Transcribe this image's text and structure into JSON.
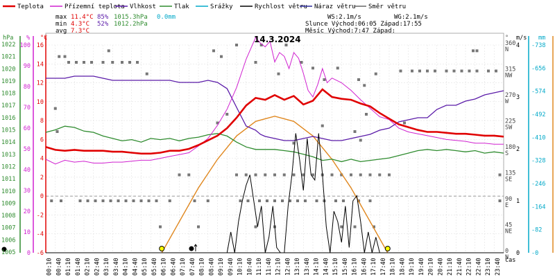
{
  "chart_data": {
    "type": "line",
    "title": "14.3.2024",
    "legend": [
      {
        "name": "Teplota",
        "color": "#e00000"
      },
      {
        "name": "Přízemní teplota",
        "color": "#d020d0"
      },
      {
        "name": "Vlhkost",
        "color": "#5a1aa8"
      },
      {
        "name": "Tlak",
        "color": "#2e8b2e"
      },
      {
        "name": "Srážky",
        "color": "#00a8c8"
      },
      {
        "name": "Rychlost větru",
        "color": "#000000"
      },
      {
        "name": "Náraz větru",
        "color": "#2a2a9a"
      },
      {
        "name": "Směr větru",
        "color": "#666666"
      }
    ],
    "stats": {
      "max_label": "max",
      "max_temp": "11.4°C",
      "max_hum": "85%",
      "max_press": "1015.3hPa",
      "rain": "0.0mm",
      "min_label": "min",
      "min_temp": "4.3°C",
      "min_hum": "52%",
      "min_press": "1012.2hPa",
      "avg_label": "avg",
      "avg_temp": "7.3°C",
      "ws": "WS:2.1m/s",
      "wg": "WG:2.1m/s",
      "sun": "Slunce Východ:06:05  Západ:17:55",
      "moon": "Měsíc  Východ:7:47   Západ:"
    },
    "axes": {
      "hpa_label": "hPa",
      "pct_label": "%",
      "c_label": "°C",
      "deg_label": "°",
      "ms_label": "m/s",
      "mm_label": "mm",
      "time_label": "čas",
      "hpa_ticks": [
        "1022",
        "1021",
        "1020",
        "1019",
        "1018",
        "1017",
        "1016",
        "1015",
        "1014",
        "1013",
        "1012",
        "1011",
        "1010",
        "1009",
        "1008",
        "1007",
        "1006",
        "1005"
      ],
      "pct_ticks": [
        "100",
        "90",
        "80",
        "70",
        "60",
        "50",
        "40",
        "30",
        "20",
        "10",
        "0"
      ],
      "c_ticks": [
        "16",
        "14",
        "12",
        "10",
        "8",
        "6",
        "4",
        "2",
        "0",
        "-2",
        "-4",
        "-6"
      ],
      "dir_ticks": [
        {
          "deg": "360",
          "name": "N"
        },
        {
          "deg": "315",
          "name": "NW"
        },
        {
          "deg": "270",
          "name": "W"
        },
        {
          "deg": "225",
          "name": "SW"
        },
        {
          "deg": "180",
          "name": "S"
        },
        {
          "deg": "135",
          "name": "SE"
        },
        {
          "deg": "90",
          "name": "E"
        },
        {
          "deg": "45",
          "name": "NE"
        },
        {
          "deg": "0",
          "name": "N"
        }
      ],
      "ms_ticks": [
        "4",
        "3",
        "2",
        "1",
        "0"
      ],
      "mm_ticks": [
        "-738",
        "-656",
        "-574",
        "-492",
        "-410",
        "-328",
        "-246",
        "-164",
        "-82",
        "-0"
      ],
      "time_ticks": [
        "00:10",
        "00:40",
        "01:10",
        "01:40",
        "02:10",
        "02:40",
        "03:10",
        "03:40",
        "04:10",
        "04:40",
        "05:10",
        "05:40",
        "06:10",
        "06:40",
        "07:10",
        "07:40",
        "08:10",
        "08:40",
        "09:10",
        "09:40",
        "10:10",
        "10:40",
        "11:10",
        "11:40",
        "12:10",
        "12:40",
        "13:10",
        "13:40",
        "14:10",
        "14:40",
        "15:10",
        "15:40",
        "16:10",
        "16:40",
        "17:10",
        "17:40",
        "18:10",
        "18:40",
        "19:10",
        "19:40",
        "20:10",
        "20:40",
        "21:10",
        "21:40",
        "22:10",
        "22:40",
        "23:10",
        "23:40"
      ],
      "c_range": [
        -6,
        16
      ]
    },
    "series": {
      "teplota_hours": [
        0,
        0.5,
        1,
        1.5,
        2,
        2.5,
        3,
        3.5,
        4,
        4.5,
        5,
        5.5,
        6,
        6.5,
        7,
        7.5,
        8,
        8.5,
        9,
        9.5,
        10,
        10.5,
        11,
        11.5,
        12,
        12.5,
        13,
        13.5,
        14,
        14.5,
        15,
        15.5,
        16,
        16.5,
        17,
        17.5,
        18,
        18.5,
        19,
        19.5,
        20,
        20.5,
        21,
        21.5,
        22,
        22.5,
        23,
        23.5,
        24
      ],
      "teplota": [
        5.2,
        4.9,
        4.8,
        4.9,
        4.8,
        4.8,
        4.8,
        4.7,
        4.7,
        4.6,
        4.5,
        4.5,
        4.6,
        4.8,
        4.8,
        5.0,
        5.4,
        5.9,
        6.4,
        7.2,
        8.3,
        9.6,
        10.4,
        10.2,
        10.7,
        10.2,
        10.6,
        9.7,
        10.1,
        11.3,
        10.5,
        10.3,
        10.2,
        9.8,
        9.5,
        8.8,
        8.2,
        7.6,
        7.3,
        7.0,
        6.8,
        6.8,
        6.7,
        6.6,
        6.6,
        6.5,
        6.4,
        6.4,
        6.3
      ],
      "prizemni_hours": [
        0,
        0.5,
        1,
        1.5,
        2,
        2.5,
        3,
        3.5,
        4,
        4.5,
        5,
        5.5,
        6,
        6.5,
        7,
        7.5,
        8,
        8.5,
        9,
        9.5,
        10,
        10.5,
        11,
        11.25,
        11.5,
        11.75,
        12,
        12.25,
        12.5,
        12.75,
        13,
        13.25,
        13.5,
        13.75,
        14,
        14.25,
        14.5,
        14.75,
        15,
        15.5,
        16,
        16.5,
        17,
        17.5,
        18,
        18.5,
        19,
        19.5,
        20,
        20.5,
        21,
        21.5,
        22,
        22.5,
        23,
        23.5,
        24
      ],
      "prizemni": [
        3.9,
        3.4,
        3.8,
        3.6,
        3.7,
        3.5,
        3.5,
        3.6,
        3.6,
        3.7,
        3.8,
        3.8,
        4.0,
        4.2,
        4.4,
        4.6,
        5.3,
        6.1,
        7.5,
        9.2,
        11.5,
        14.5,
        16.8,
        16.2,
        15.8,
        16.4,
        14.2,
        15.2,
        14.8,
        13.5,
        15.2,
        14.6,
        13.0,
        11.2,
        10.5,
        11.8,
        13.5,
        12.0,
        12.5,
        12.0,
        11.2,
        10.2,
        9.3,
        8.4,
        8.1,
        7.2,
        6.8,
        6.6,
        6.4,
        6.2,
        6.0,
        5.9,
        5.8,
        5.6,
        5.6,
        5.5,
        5.5
      ],
      "vlhkost_hours": [
        0,
        1,
        1.5,
        2,
        2.5,
        3,
        3.5,
        4,
        4.5,
        5,
        5.5,
        6,
        6.5,
        7,
        7.5,
        8,
        8.5,
        9,
        9.5,
        10,
        10.5,
        11,
        11.25,
        11.5,
        12,
        12.5,
        13,
        13.5,
        14,
        14.5,
        15,
        15.5,
        16,
        16.5,
        17,
        17.5,
        18,
        18.5,
        19,
        19.5,
        20,
        20.5,
        21,
        21.5,
        22,
        22.5,
        23,
        23.5,
        24
      ],
      "vlhkost": [
        84,
        84,
        85,
        85,
        85,
        84,
        83,
        83,
        83,
        83,
        83,
        83,
        83,
        82,
        82,
        82,
        83,
        82,
        79,
        70,
        61,
        59,
        57,
        56,
        55,
        54,
        54,
        55,
        56,
        55,
        54,
        54,
        55,
        56,
        57,
        59,
        60,
        63,
        64,
        65,
        65,
        69,
        71,
        71,
        73,
        74,
        76,
        77,
        78
      ],
      "tlak_hours": [
        0,
        0.5,
        1,
        1.5,
        2,
        2.5,
        3,
        3.5,
        4,
        4.5,
        5,
        5.5,
        6,
        6.5,
        7,
        7.5,
        8,
        8.5,
        9,
        9.5,
        10,
        10.5,
        11,
        11.5,
        12,
        12.5,
        13,
        13.5,
        14,
        14.5,
        15,
        15.5,
        16,
        16.5,
        17,
        17.5,
        18,
        18.5,
        19,
        19.5,
        20,
        20.5,
        21,
        21.5,
        22,
        22.5,
        23,
        23.5,
        24
      ],
      "tlak": [
        1014.8,
        1015.0,
        1015.3,
        1015.2,
        1014.9,
        1014.8,
        1014.5,
        1014.3,
        1014.1,
        1014.2,
        1014.0,
        1014.3,
        1014.2,
        1014.3,
        1014.1,
        1014.3,
        1014.4,
        1014.6,
        1014.7,
        1014.5,
        1014.0,
        1013.6,
        1013.4,
        1013.4,
        1013.4,
        1013.3,
        1013.2,
        1013.0,
        1012.8,
        1012.5,
        1012.6,
        1012.4,
        1012.6,
        1012.4,
        1012.5,
        1012.6,
        1012.7,
        1012.9,
        1013.1,
        1013.3,
        1013.4,
        1013.3,
        1013.4,
        1013.3,
        1013.2,
        1013.3,
        1013.1,
        1013.2,
        1013.1
      ],
      "sun_hours": [
        6.08,
        7,
        8,
        9,
        10,
        11,
        12,
        13,
        14,
        15,
        16,
        17,
        17.92
      ],
      "sun_ms": [
        0,
        0.6,
        1.25,
        1.8,
        2.25,
        2.53,
        2.63,
        2.53,
        2.25,
        1.8,
        1.25,
        0.6,
        0
      ],
      "wind_hours": [
        0,
        9.5,
        9.7,
        9.9,
        10.1,
        10.3,
        10.5,
        10.7,
        10.9,
        11.1,
        11.3,
        11.5,
        11.7,
        11.9,
        12.1,
        12.3,
        12.5,
        12.7,
        12.9,
        13.1,
        13.3,
        13.5,
        13.7,
        13.9,
        14.1,
        14.3,
        14.5,
        14.7,
        14.9,
        15.1,
        15.3,
        15.5,
        15.7,
        15.9,
        16.1,
        16.3,
        16.5,
        16.7,
        16.9,
        17.1,
        17.3,
        17.5,
        17.7,
        24
      ],
      "wind_ms": [
        0,
        0,
        0.4,
        0,
        0.6,
        1.0,
        1.3,
        1.5,
        1.0,
        0.5,
        0.9,
        0,
        0.3,
        0.9,
        0.1,
        0,
        0,
        0.9,
        1.5,
        2.3,
        1.8,
        1.2,
        2.2,
        1.5,
        1.4,
        2.3,
        1.5,
        0.5,
        0,
        0.8,
        0.6,
        0.2,
        0.9,
        0.1,
        1.0,
        1.1,
        0.6,
        0,
        0.4,
        0,
        0.3,
        0,
        0,
        0
      ],
      "dir_points": [
        [
          0.5,
          250
        ],
        [
          0.7,
          340
        ],
        [
          1.0,
          340
        ],
        [
          0.6,
          210
        ],
        [
          1.2,
          330
        ],
        [
          1.6,
          330
        ],
        [
          2.0,
          330
        ],
        [
          2.4,
          330
        ],
        [
          3.0,
          330
        ],
        [
          3.3,
          350
        ],
        [
          3.5,
          330
        ],
        [
          4.0,
          330
        ],
        [
          4.4,
          330
        ],
        [
          4.8,
          330
        ],
        [
          5.3,
          310
        ],
        [
          0.3,
          90
        ],
        [
          0.8,
          90
        ],
        [
          1.8,
          90
        ],
        [
          2.2,
          90
        ],
        [
          2.6,
          90
        ],
        [
          3.0,
          90
        ],
        [
          3.4,
          90
        ],
        [
          3.8,
          90
        ],
        [
          4.2,
          90
        ],
        [
          4.6,
          90
        ],
        [
          5.0,
          90
        ],
        [
          5.4,
          90
        ],
        [
          5.8,
          90
        ],
        [
          6.0,
          45
        ],
        [
          6.5,
          90
        ],
        [
          7.0,
          135
        ],
        [
          7.5,
          135
        ],
        [
          7.8,
          90
        ],
        [
          8.0,
          45
        ],
        [
          8.5,
          90
        ],
        [
          9.0,
          225
        ],
        [
          9.5,
          240
        ],
        [
          10.0,
          135
        ],
        [
          10.5,
          135
        ],
        [
          11.0,
          135
        ],
        [
          11.5,
          135
        ],
        [
          12.0,
          135
        ],
        [
          12.5,
          135
        ],
        [
          13.0,
          135
        ],
        [
          13.5,
          135
        ],
        [
          14.0,
          135
        ],
        [
          14.5,
          135
        ],
        [
          15.0,
          135
        ],
        [
          15.5,
          135
        ],
        [
          16.0,
          135
        ],
        [
          16.5,
          135
        ],
        [
          17.0,
          135
        ],
        [
          17.5,
          135
        ],
        [
          18.0,
          135
        ],
        [
          10.2,
          90
        ],
        [
          10.6,
          90
        ],
        [
          11.2,
          90
        ],
        [
          11.6,
          90
        ],
        [
          12.0,
          90
        ],
        [
          12.4,
          90
        ],
        [
          12.8,
          90
        ],
        [
          13.2,
          90
        ],
        [
          13.6,
          90
        ],
        [
          14.2,
          90
        ],
        [
          14.6,
          90
        ],
        [
          15.2,
          90
        ],
        [
          15.6,
          90
        ],
        [
          16.4,
          90
        ],
        [
          17.0,
          90
        ],
        [
          11.0,
          45
        ],
        [
          12.0,
          45
        ],
        [
          15.5,
          45
        ],
        [
          16.2,
          45
        ],
        [
          17.2,
          45
        ],
        [
          8.8,
          350
        ],
        [
          9.2,
          340
        ],
        [
          10.0,
          360
        ],
        [
          11.0,
          330
        ],
        [
          11.3,
          360
        ],
        [
          12.2,
          310
        ],
        [
          12.6,
          360
        ],
        [
          13.4,
          330
        ],
        [
          14.0,
          320
        ],
        [
          14.6,
          300
        ],
        [
          15.3,
          320
        ],
        [
          16.4,
          300
        ],
        [
          16.7,
          290
        ],
        [
          17.3,
          310
        ],
        [
          16.8,
          240
        ],
        [
          18.6,
          315
        ],
        [
          19.2,
          315
        ],
        [
          19.6,
          315
        ],
        [
          20.0,
          315
        ],
        [
          20.4,
          315
        ],
        [
          21.0,
          315
        ],
        [
          21.4,
          315
        ],
        [
          21.8,
          315
        ],
        [
          22.2,
          315
        ],
        [
          22.6,
          315
        ],
        [
          23.2,
          315
        ],
        [
          23.6,
          315
        ],
        [
          22.4,
          350
        ],
        [
          22.6,
          350
        ],
        [
          18.8,
          225
        ],
        [
          23.8,
          135
        ],
        [
          23.8,
          90
        ],
        [
          13.0,
          190
        ],
        [
          14.5,
          220
        ],
        [
          16.2,
          210
        ],
        [
          16.5,
          195
        ]
      ],
      "markers": {
        "sunrise_hour": 6.08,
        "sunset_hour": 17.92,
        "moonrise_hour": 7.78
      }
    }
  }
}
